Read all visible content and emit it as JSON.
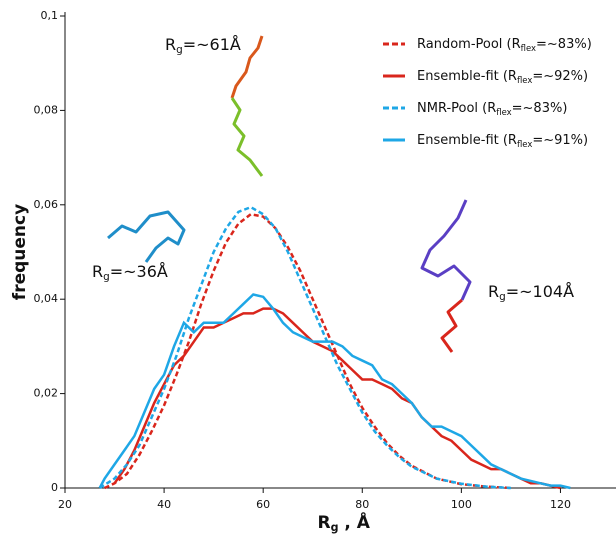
{
  "chart_data": {
    "type": "line",
    "x_label": [
      "R",
      "g",
      " , Å"
    ],
    "y_label": "frequency",
    "xlim": [
      20,
      130
    ],
    "xticks": [
      20,
      40,
      60,
      80,
      100,
      120
    ],
    "ylim": [
      0,
      0.1
    ],
    "yticks": [
      0,
      {
        "value": 0.02,
        "label": "0,02"
      },
      {
        "value": 0.04,
        "label": "0,04"
      },
      {
        "value": 0.06,
        "label": "0,06"
      },
      {
        "value": 0.08,
        "label": "0,08"
      },
      {
        "value": 0.1,
        "label": "0,1"
      }
    ],
    "legend": "upper right",
    "annotations": [
      {
        "text": [
          "R",
          "g",
          "=~61Å"
        ]
      },
      {
        "text": [
          "R",
          "g",
          "=~36Å"
        ]
      },
      {
        "text": [
          "R",
          "g",
          "=~104Å"
        ]
      }
    ],
    "series": [
      {
        "name": [
          "Random-Pool (R",
          "flex",
          "=~83%)"
        ],
        "color": "#d9261c",
        "dashed": true,
        "x": [
          28,
          30,
          32.5,
          35,
          37.5,
          40,
          42.5,
          45,
          47.5,
          50,
          52.5,
          55,
          57.5,
          60,
          62.5,
          65,
          67.5,
          70,
          72.5,
          75,
          77.5,
          80,
          82.5,
          85,
          87.5,
          90,
          95,
          100,
          105,
          110
        ],
        "values": [
          0,
          0.001,
          0.003,
          0.007,
          0.012,
          0.0175,
          0.024,
          0.031,
          0.039,
          0.046,
          0.052,
          0.056,
          0.058,
          0.0575,
          0.055,
          0.051,
          0.046,
          0.04,
          0.034,
          0.028,
          0.022,
          0.017,
          0.013,
          0.0095,
          0.0068,
          0.0047,
          0.002,
          0.0008,
          0.0003,
          0
        ]
      },
      {
        "name": [
          "Ensemble-fit (R",
          "flex",
          "=~92%)"
        ],
        "color": "#d9261c",
        "dashed": false,
        "x": [
          30,
          32,
          34,
          36,
          38,
          40,
          42,
          44,
          46,
          48,
          50,
          52,
          54,
          56,
          58,
          60,
          62,
          64,
          66,
          68,
          70,
          72,
          74,
          76,
          78,
          80,
          82,
          84,
          86,
          88,
          90,
          92,
          94,
          96,
          98,
          100,
          102,
          104,
          106,
          108,
          110,
          112,
          114,
          116,
          118,
          120
        ],
        "values": [
          0.001,
          0.004,
          0.008,
          0.013,
          0.018,
          0.022,
          0.026,
          0.028,
          0.031,
          0.034,
          0.034,
          0.035,
          0.036,
          0.037,
          0.037,
          0.038,
          0.038,
          0.037,
          0.035,
          0.033,
          0.031,
          0.03,
          0.029,
          0.027,
          0.025,
          0.023,
          0.023,
          0.022,
          0.021,
          0.019,
          0.018,
          0.015,
          0.013,
          0.011,
          0.01,
          0.008,
          0.006,
          0.005,
          0.004,
          0.004,
          0.003,
          0.002,
          0.001,
          0.001,
          0.0005,
          0
        ]
      },
      {
        "name": [
          "NMR-Pool (R",
          "flex",
          "=~83%)"
        ],
        "color": "#1ea7e6",
        "dashed": true,
        "x": [
          27,
          30,
          32.5,
          35,
          37.5,
          40,
          42.5,
          45,
          47.5,
          50,
          52.5,
          55,
          57.5,
          60,
          62.5,
          65,
          67.5,
          70,
          72.5,
          75,
          77.5,
          80,
          82.5,
          85,
          87.5,
          90,
          95,
          100,
          105,
          110
        ],
        "values": [
          0,
          0.002,
          0.005,
          0.009,
          0.015,
          0.021,
          0.028,
          0.036,
          0.043,
          0.05,
          0.055,
          0.0585,
          0.0595,
          0.058,
          0.055,
          0.05,
          0.044,
          0.038,
          0.032,
          0.026,
          0.021,
          0.016,
          0.012,
          0.009,
          0.0065,
          0.0045,
          0.002,
          0.0009,
          0.0003,
          0
        ]
      },
      {
        "name": [
          "Ensemble-fit (R",
          "flex",
          "=~91%)"
        ],
        "color": "#1ea7e6",
        "dashed": false,
        "x": [
          27,
          28,
          30,
          32,
          34,
          36,
          38,
          40,
          42,
          44,
          46,
          48,
          50,
          52,
          54,
          56,
          58,
          60,
          62,
          64,
          66,
          68,
          70,
          72,
          74,
          76,
          78,
          80,
          82,
          84,
          86,
          88,
          90,
          92,
          94,
          96,
          98,
          100,
          102,
          104,
          106,
          108,
          110,
          112,
          114,
          116,
          118,
          120,
          122
        ],
        "values": [
          0,
          0.002,
          0.005,
          0.008,
          0.011,
          0.016,
          0.021,
          0.024,
          0.03,
          0.035,
          0.033,
          0.035,
          0.035,
          0.035,
          0.037,
          0.039,
          0.041,
          0.0405,
          0.038,
          0.035,
          0.033,
          0.032,
          0.031,
          0.031,
          0.031,
          0.03,
          0.028,
          0.027,
          0.026,
          0.023,
          0.022,
          0.02,
          0.018,
          0.015,
          0.013,
          0.013,
          0.012,
          0.011,
          0.009,
          0.007,
          0.005,
          0.004,
          0.003,
          0.002,
          0.0015,
          0.001,
          0.0005,
          0.0005,
          0
        ]
      }
    ]
  }
}
